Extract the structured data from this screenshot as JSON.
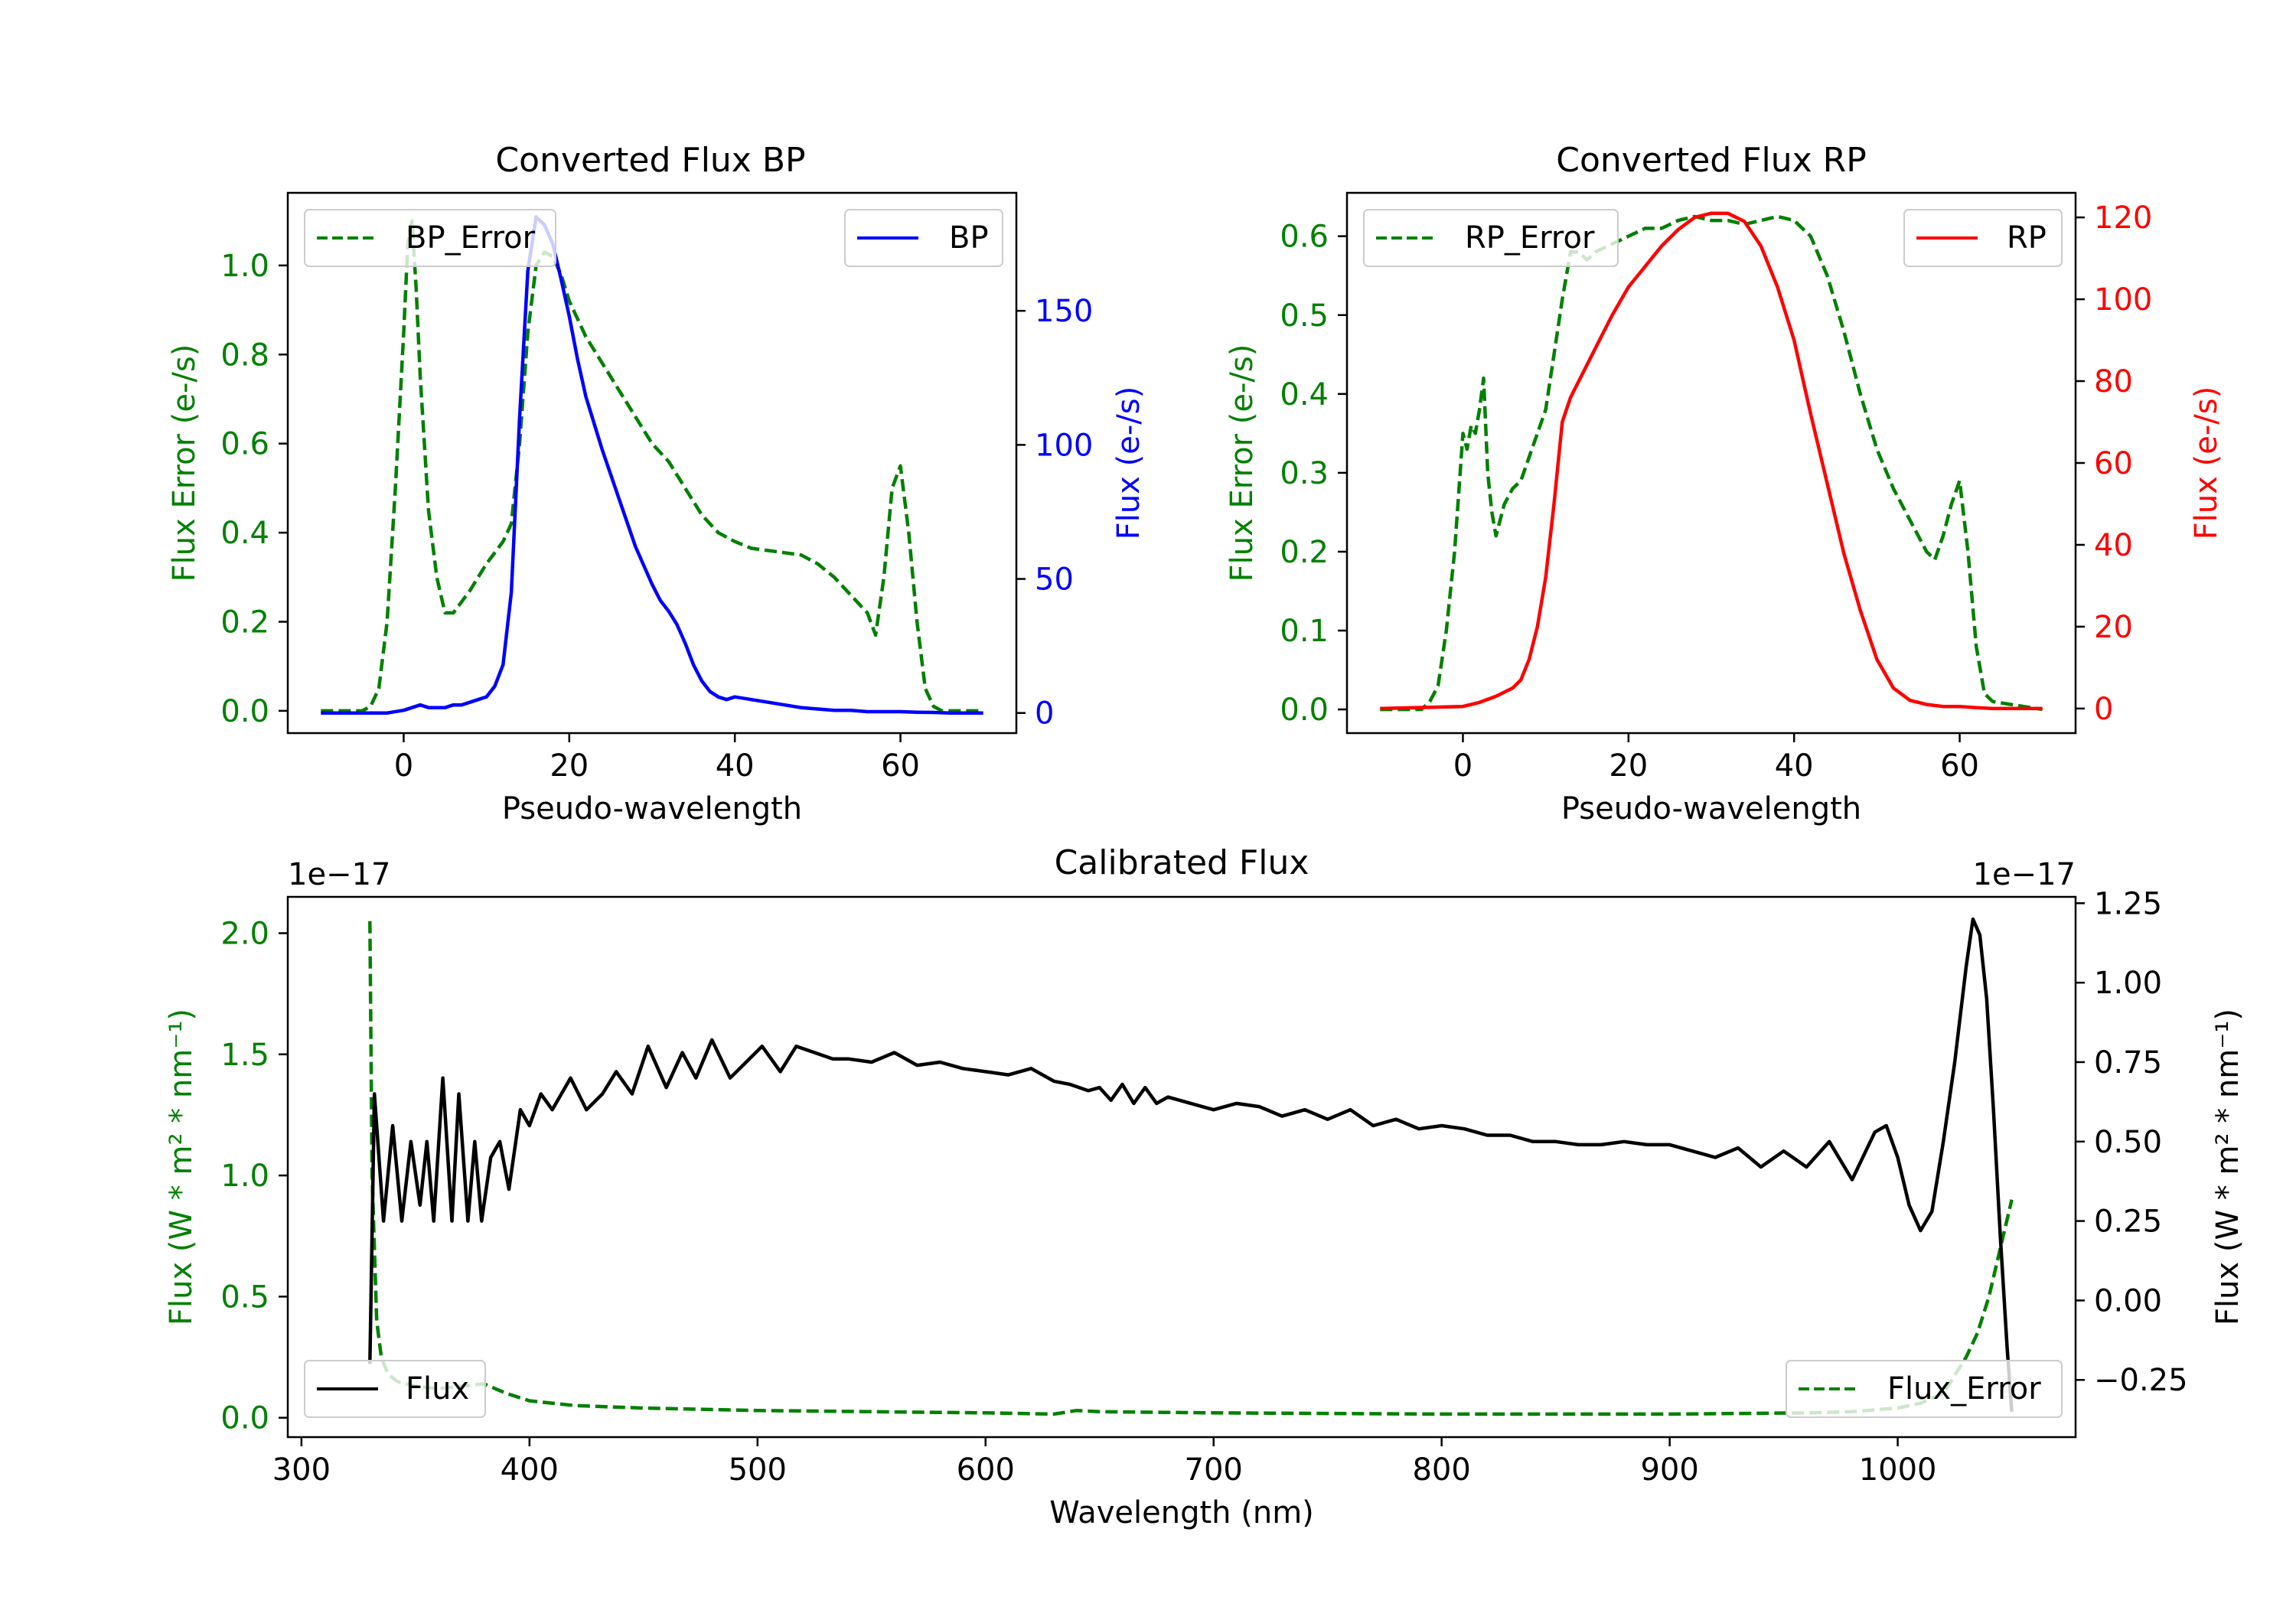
{
  "chart_data": [
    {
      "id": "bp",
      "type": "line",
      "title": "Converted Flux BP",
      "xlabel": "Pseudo-wavelength",
      "ylabel_left": "Flux Error (e-/s)",
      "ylabel_right": "Flux (e-/s)",
      "xlim": [
        -14,
        74
      ],
      "ylim_left": [
        -0.05,
        1.163
      ],
      "ylim_right": [
        -7.5,
        194
      ],
      "x_ticks": [
        0,
        20,
        40,
        60
      ],
      "x_tick_labels": [
        "0",
        "20",
        "40",
        "60"
      ],
      "y_left_ticks": [
        0,
        0.2,
        0.4,
        0.6,
        0.8,
        1.0
      ],
      "y_left_tick_labels": [
        "0.0",
        "0.2",
        "0.4",
        "0.6",
        "0.8",
        "1.0"
      ],
      "y_right_ticks": [
        0,
        50,
        100,
        150
      ],
      "y_right_tick_labels": [
        "0",
        "50",
        "100",
        "150"
      ],
      "left_color": "#008000",
      "right_color": "#0000ff",
      "series": [
        {
          "name": "BP_Error",
          "axis": "left",
          "color": "#008000",
          "style": "dashed",
          "x": [
            -10,
            -5,
            -4,
            -3,
            -2,
            -1,
            0,
            0.5,
            1,
            1.5,
            2,
            3,
            4,
            5,
            6,
            8,
            10,
            12,
            13,
            14,
            15,
            16,
            17,
            18,
            19,
            20,
            22,
            24,
            26,
            28,
            30,
            32,
            34,
            36,
            38,
            40,
            42,
            44,
            46,
            48,
            50,
            52,
            54,
            56,
            57,
            58,
            59,
            60,
            61,
            62,
            63,
            64,
            65,
            70
          ],
          "values": [
            0,
            0,
            0.01,
            0.05,
            0.2,
            0.5,
            0.85,
            1.05,
            1.1,
            0.95,
            0.75,
            0.45,
            0.3,
            0.22,
            0.22,
            0.27,
            0.33,
            0.38,
            0.42,
            0.6,
            0.85,
            1.0,
            1.03,
            1.02,
            0.98,
            0.92,
            0.84,
            0.78,
            0.72,
            0.66,
            0.6,
            0.56,
            0.5,
            0.44,
            0.4,
            0.38,
            0.365,
            0.36,
            0.355,
            0.35,
            0.33,
            0.3,
            0.26,
            0.22,
            0.17,
            0.3,
            0.5,
            0.55,
            0.4,
            0.2,
            0.05,
            0.01,
            0,
            0
          ]
        },
        {
          "name": "BP",
          "axis": "right",
          "color": "#0000ff",
          "style": "solid",
          "x": [
            -10,
            -2,
            0,
            1,
            2,
            3,
            4,
            5,
            6,
            7,
            8,
            9,
            10,
            11,
            12,
            13,
            14,
            15,
            16,
            17,
            18,
            19,
            20,
            21,
            22,
            24,
            26,
            28,
            30,
            31,
            32,
            33,
            34,
            35,
            36,
            37,
            38,
            39,
            40,
            42,
            44,
            46,
            48,
            50,
            52,
            54,
            56,
            58,
            60,
            62,
            64,
            66,
            68,
            70
          ],
          "values": [
            0,
            0,
            1,
            2,
            3,
            2,
            2,
            2,
            3,
            3,
            4,
            5,
            6,
            10,
            18,
            45,
            110,
            165,
            185,
            182,
            175,
            162,
            148,
            132,
            118,
            98,
            80,
            62,
            48,
            42,
            38,
            33,
            26,
            18,
            12,
            8,
            6,
            5,
            6,
            5,
            4,
            3,
            2,
            1.5,
            1,
            1,
            0.5,
            0.5,
            0.5,
            0.3,
            0.2,
            0,
            0,
            0
          ]
        }
      ],
      "legend": [
        {
          "label": "BP_Error",
          "position": "upper-left"
        },
        {
          "label": "BP",
          "position": "upper-right"
        }
      ]
    },
    {
      "id": "rp",
      "type": "line",
      "title": "Converted Flux RP",
      "xlabel": "Pseudo-wavelength",
      "ylabel_left": "Flux Error (e-/s)",
      "ylabel_right": "Flux (e-/s)",
      "xlim": [
        -14,
        74
      ],
      "ylim_left": [
        -0.03,
        0.655
      ],
      "ylim_right": [
        -6,
        126
      ],
      "x_ticks": [
        0,
        20,
        40,
        60
      ],
      "x_tick_labels": [
        "0",
        "20",
        "40",
        "60"
      ],
      "y_left_ticks": [
        0,
        0.1,
        0.2,
        0.3,
        0.4,
        0.5,
        0.6
      ],
      "y_left_tick_labels": [
        "0.0",
        "0.1",
        "0.2",
        "0.3",
        "0.4",
        "0.5",
        "0.6"
      ],
      "y_right_ticks": [
        0,
        20,
        40,
        60,
        80,
        100,
        120
      ],
      "y_right_tick_labels": [
        "0",
        "20",
        "40",
        "60",
        "80",
        "100",
        "120"
      ],
      "left_color": "#008000",
      "right_color": "#ff0000",
      "series": [
        {
          "name": "RP_Error",
          "axis": "left",
          "color": "#008000",
          "style": "dashed",
          "x": [
            -10,
            -5,
            -4,
            -3,
            -2,
            -1,
            0,
            0.5,
            1,
            1.5,
            2,
            2.5,
            3,
            3.5,
            4,
            5,
            6,
            7,
            8,
            9,
            10,
            11,
            12,
            13,
            14,
            15,
            16,
            18,
            20,
            22,
            24,
            26,
            28,
            30,
            32,
            34,
            36,
            38,
            40,
            42,
            44,
            46,
            48,
            50,
            52,
            54,
            55,
            56,
            57,
            58,
            59,
            60,
            61,
            62,
            63,
            64,
            70
          ],
          "values": [
            0,
            0,
            0.01,
            0.03,
            0.1,
            0.2,
            0.35,
            0.33,
            0.36,
            0.35,
            0.38,
            0.42,
            0.3,
            0.25,
            0.22,
            0.26,
            0.28,
            0.29,
            0.32,
            0.35,
            0.38,
            0.45,
            0.52,
            0.58,
            0.58,
            0.57,
            0.58,
            0.59,
            0.6,
            0.61,
            0.61,
            0.62,
            0.625,
            0.62,
            0.62,
            0.615,
            0.62,
            0.625,
            0.62,
            0.6,
            0.55,
            0.48,
            0.4,
            0.33,
            0.28,
            0.24,
            0.22,
            0.2,
            0.19,
            0.22,
            0.26,
            0.29,
            0.2,
            0.08,
            0.02,
            0.01,
            0
          ]
        },
        {
          "name": "RP",
          "axis": "right",
          "color": "#ff0000",
          "style": "solid",
          "x": [
            -10,
            0,
            2,
            4,
            6,
            7,
            8,
            9,
            10,
            11,
            12,
            13,
            14,
            16,
            18,
            20,
            22,
            24,
            26,
            28,
            30,
            32,
            34,
            36,
            38,
            40,
            42,
            44,
            46,
            48,
            50,
            52,
            54,
            56,
            58,
            60,
            62,
            64,
            66,
            70
          ],
          "values": [
            0,
            0.5,
            1.5,
            3,
            5,
            7,
            12,
            20,
            32,
            50,
            70,
            76,
            80,
            88,
            96,
            103,
            108,
            113,
            117,
            120,
            121,
            121,
            119,
            113,
            103,
            90,
            72,
            55,
            38,
            24,
            12,
            5,
            2,
            1,
            0.5,
            0.5,
            0.2,
            0,
            0,
            0
          ]
        }
      ],
      "legend": [
        {
          "label": "RP_Error",
          "position": "upper-left"
        },
        {
          "label": "RP",
          "position": "upper-right"
        }
      ]
    },
    {
      "id": "cal",
      "type": "line",
      "title": "Calibrated Flux",
      "xlabel": "Wavelength (nm)",
      "ylabel_left": "Flux (W * m² * nm⁻¹)",
      "ylabel_right": "Flux (W * m² * nm⁻¹)",
      "offset_left": "1e−17",
      "offset_right": "1e−17",
      "xlim": [
        294,
        1078
      ],
      "ylim_left": [
        -0.08,
        2.15
      ],
      "ylim_right": [
        -0.43,
        1.27
      ],
      "x_ticks": [
        300,
        400,
        500,
        600,
        700,
        800,
        900,
        1000
      ],
      "x_tick_labels": [
        "300",
        "400",
        "500",
        "600",
        "700",
        "800",
        "900",
        "1000"
      ],
      "y_left_ticks": [
        0,
        0.5,
        1.0,
        1.5,
        2.0
      ],
      "y_left_tick_labels": [
        "0.0",
        "0.5",
        "1.0",
        "1.5",
        "2.0"
      ],
      "y_right_ticks": [
        -0.25,
        0,
        0.25,
        0.5,
        0.75,
        1.0,
        1.25
      ],
      "y_right_tick_labels": [
        "−0.25",
        "0.00",
        "0.25",
        "0.50",
        "0.75",
        "1.00",
        "1.25"
      ],
      "left_color": "#008000",
      "right_color": "#000000",
      "series": [
        {
          "name": "Flux_Error",
          "axis": "left",
          "color": "#008000",
          "style": "dashed",
          "x": [
            330,
            331,
            333,
            335,
            338,
            342,
            350,
            360,
            370,
            380,
            390,
            400,
            420,
            450,
            500,
            550,
            600,
            630,
            640,
            650,
            700,
            800,
            900,
            960,
            980,
            1000,
            1010,
            1020,
            1030,
            1035,
            1040,
            1045,
            1050
          ],
          "values": [
            2.05,
            1.0,
            0.4,
            0.25,
            0.18,
            0.15,
            0.13,
            0.12,
            0.13,
            0.14,
            0.1,
            0.07,
            0.05,
            0.04,
            0.03,
            0.025,
            0.02,
            0.015,
            0.03,
            0.025,
            0.02,
            0.015,
            0.015,
            0.02,
            0.025,
            0.04,
            0.06,
            0.1,
            0.25,
            0.35,
            0.5,
            0.7,
            0.9
          ]
        },
        {
          "name": "Flux",
          "axis": "right",
          "color": "#000000",
          "style": "solid",
          "x": [
            330,
            332,
            336,
            340,
            344,
            348,
            352,
            355,
            358,
            362,
            366,
            369,
            373,
            376,
            379,
            383,
            387,
            391,
            396,
            400,
            405,
            410,
            418,
            425,
            432,
            438,
            445,
            452,
            460,
            467,
            473,
            480,
            488,
            495,
            502,
            510,
            517,
            525,
            533,
            540,
            550,
            560,
            570,
            580,
            590,
            600,
            610,
            620,
            630,
            637,
            645,
            650,
            655,
            660,
            665,
            670,
            675,
            680,
            690,
            700,
            710,
            720,
            730,
            740,
            750,
            760,
            770,
            780,
            790,
            800,
            810,
            820,
            830,
            840,
            850,
            860,
            870,
            880,
            890,
            900,
            910,
            920,
            930,
            940,
            950,
            960,
            970,
            980,
            990,
            995,
            1000,
            1005,
            1010,
            1015,
            1020,
            1025,
            1030,
            1033,
            1036,
            1039,
            1042,
            1045,
            1048,
            1050
          ],
          "values": [
            -0.2,
            0.65,
            0.25,
            0.55,
            0.25,
            0.5,
            0.3,
            0.5,
            0.25,
            0.7,
            0.25,
            0.65,
            0.25,
            0.5,
            0.25,
            0.45,
            0.5,
            0.35,
            0.6,
            0.55,
            0.65,
            0.6,
            0.7,
            0.6,
            0.65,
            0.72,
            0.65,
            0.8,
            0.67,
            0.78,
            0.7,
            0.82,
            0.7,
            0.75,
            0.8,
            0.72,
            0.8,
            0.78,
            0.76,
            0.76,
            0.75,
            0.78,
            0.74,
            0.75,
            0.73,
            0.72,
            0.71,
            0.73,
            0.69,
            0.68,
            0.66,
            0.67,
            0.63,
            0.68,
            0.62,
            0.67,
            0.62,
            0.64,
            0.62,
            0.6,
            0.62,
            0.61,
            0.58,
            0.6,
            0.57,
            0.6,
            0.55,
            0.57,
            0.54,
            0.55,
            0.54,
            0.52,
            0.52,
            0.5,
            0.5,
            0.49,
            0.49,
            0.5,
            0.49,
            0.49,
            0.47,
            0.45,
            0.48,
            0.42,
            0.47,
            0.42,
            0.5,
            0.38,
            0.53,
            0.55,
            0.45,
            0.3,
            0.22,
            0.28,
            0.5,
            0.75,
            1.05,
            1.2,
            1.15,
            0.95,
            0.6,
            0.2,
            -0.15,
            -0.35
          ]
        }
      ],
      "legend": [
        {
          "label": "Flux",
          "position": "lower-left"
        },
        {
          "label": "Flux_Error",
          "position": "lower-right"
        }
      ]
    }
  ]
}
